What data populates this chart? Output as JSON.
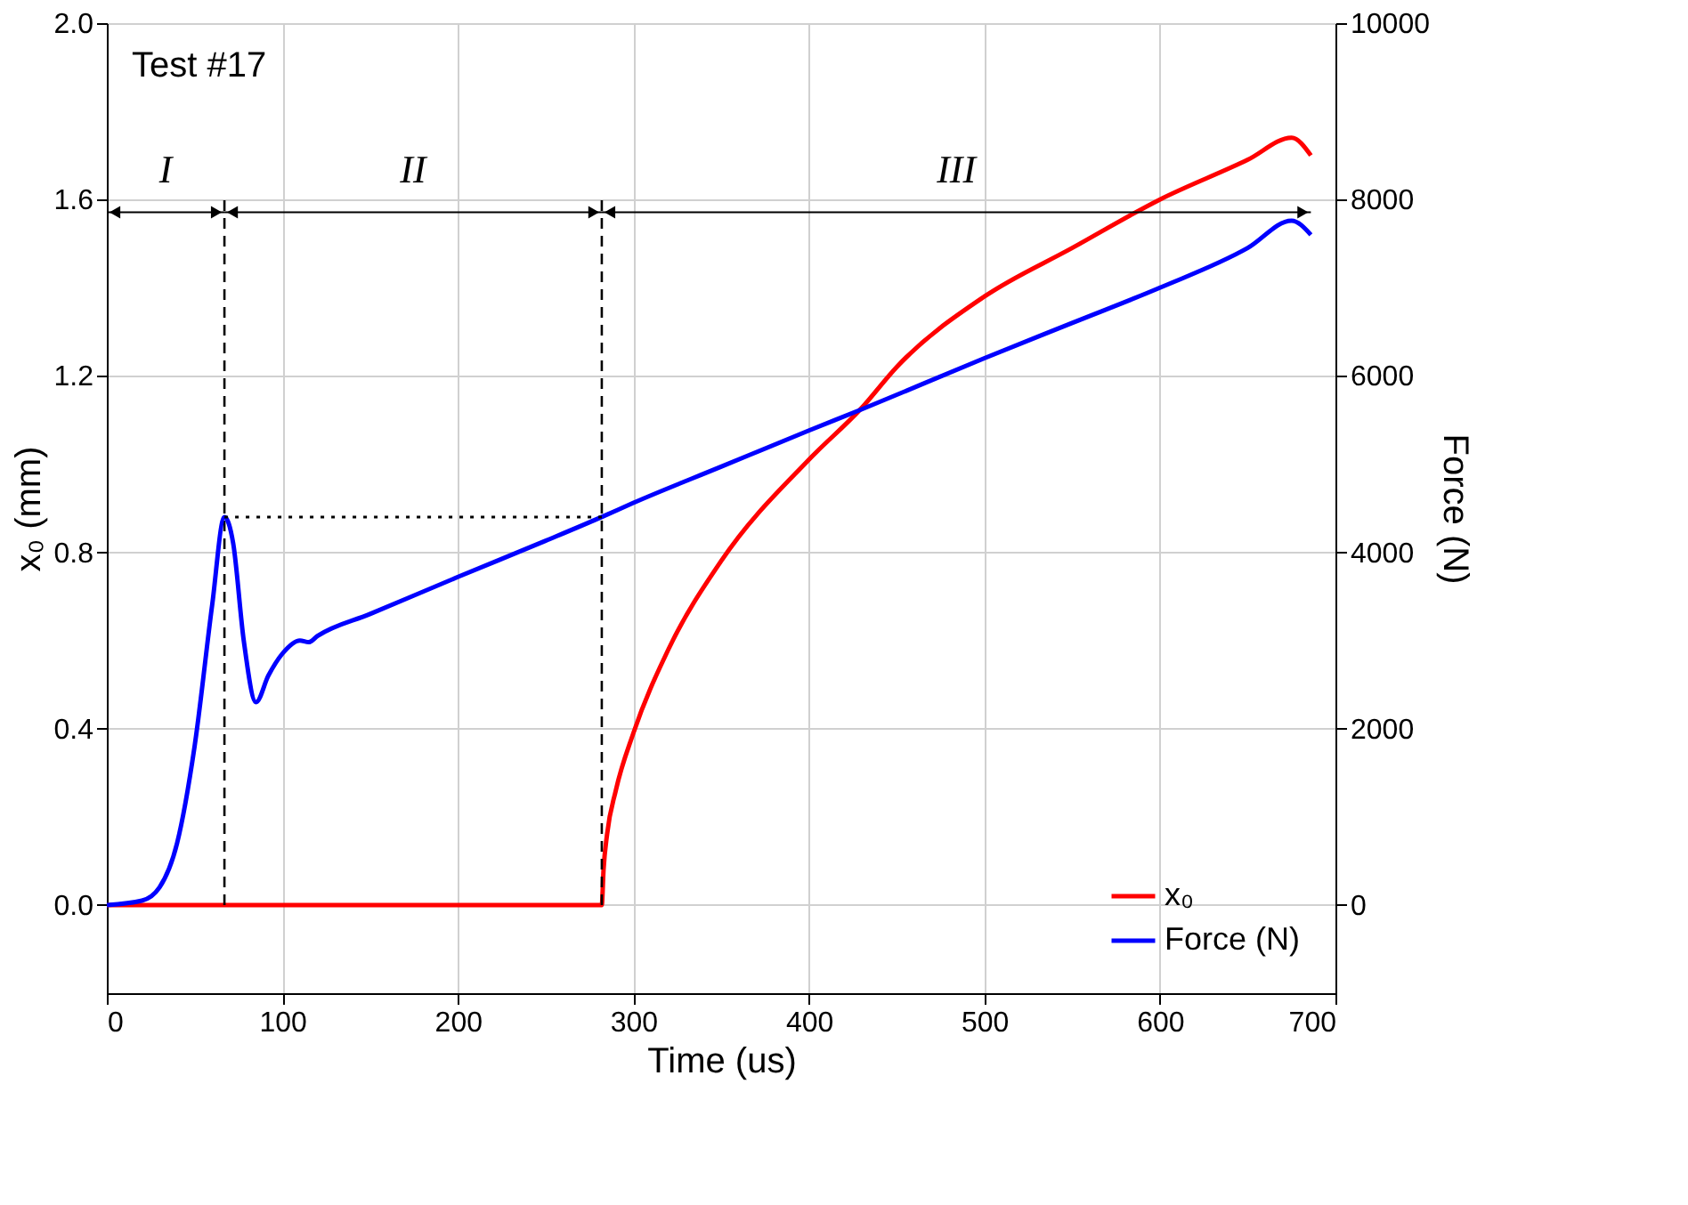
{
  "chart_data": {
    "type": "line",
    "xlabel": "Time (us)",
    "ylabel": "x₀ (mm)",
    "y2label": "Force (N)",
    "xlim": [
      0,
      700
    ],
    "xticks": [
      0,
      100,
      200,
      300,
      400,
      500,
      600,
      700
    ],
    "ylim": [
      -0.2,
      2.0
    ],
    "yticks": [
      {
        "value": 0,
        "label": "0.0"
      },
      {
        "value": 0.4,
        "label": "0.4"
      },
      {
        "value": 0.8,
        "label": "0.8"
      },
      {
        "value": 1.2,
        "label": "1.2"
      },
      {
        "value": 1.6,
        "label": "1.6"
      },
      {
        "value": 2,
        "label": "2.0"
      }
    ],
    "y2lim": [
      -1000,
      10000
    ],
    "y2ticks": [
      0,
      2000,
      4000,
      6000,
      8000,
      10000
    ],
    "grid": true,
    "legend": "bottom right",
    "line_style": "solid",
    "marker": "none",
    "series": [
      {
        "name": "x₀",
        "color": "#ff0000",
        "x": [
          0,
          100,
          200,
          282,
          283,
          285,
          290,
          300,
          320,
          350,
          400,
          430,
          450,
          500,
          550,
          600,
          650,
          675,
          686
        ],
        "values": [
          0,
          0,
          0,
          0,
          0.08,
          0.16,
          0.26,
          0.39,
          0.58,
          0.78,
          1.01,
          1.127,
          1.22,
          1.38,
          1.49,
          1.6,
          1.69,
          1.74,
          1.7
        ]
      },
      {
        "name": "Force (N)",
        "color": "#0000ff",
        "axis": "y2",
        "x": [
          0,
          20,
          30,
          40,
          50,
          60,
          67,
          72,
          78,
          85,
          92,
          100,
          110,
          115,
          120,
          150,
          200,
          250,
          282,
          300,
          350,
          400,
          430,
          500,
          550,
          600,
          650,
          675,
          686
        ],
        "values": [
          0,
          50,
          200,
          700,
          1800,
          3400,
          4400,
          4100,
          3000,
          2300,
          2600,
          2850,
          3000,
          2980,
          3050,
          3300,
          3720,
          4130,
          4400,
          4560,
          4970,
          5380,
          5620,
          6200,
          6600,
          7000,
          7450,
          7760,
          7600
        ]
      },
      {
        "type": "line",
        "line_style": "dotted",
        "color": "#000000",
        "axis": "y2",
        "x": [
          67,
          282
        ],
        "values": [
          4400,
          4400
        ]
      }
    ],
    "ref_lines": [
      {
        "axis": "x",
        "value": 67,
        "line_style": "dashed",
        "color": "#000000"
      },
      {
        "axis": "x",
        "value": 282,
        "line_style": "dashed",
        "color": "#000000"
      }
    ],
    "annotations": [
      "Test #17",
      "I",
      "II",
      "III"
    ]
  }
}
